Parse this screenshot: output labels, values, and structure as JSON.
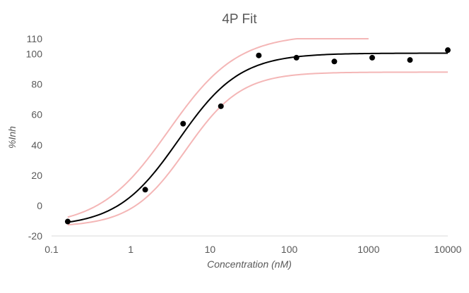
{
  "chart_data": {
    "type": "scatter",
    "title": "4P Fit",
    "xlabel": "Concentration (nM)",
    "ylabel": "%Inh",
    "x_scale": "log",
    "xlim": [
      0.1,
      10000
    ],
    "ylim": [
      -20,
      110
    ],
    "x_ticks": [
      0.1,
      1,
      10,
      100,
      1000,
      10000
    ],
    "x_tick_labels": [
      "0.1",
      "1",
      "10",
      "100",
      "1000",
      "10000"
    ],
    "y_ticks": [
      -20,
      0,
      20,
      40,
      60,
      80,
      100,
      110
    ],
    "y_tick_labels": [
      "-20",
      "0",
      "20",
      "40",
      "60",
      "80",
      "100",
      "110"
    ],
    "grid": false,
    "legend": "none",
    "series": [
      {
        "kind": "points",
        "color": "#000000",
        "x": [
          0.16,
          1.52,
          4.57,
          13.7,
          41.2,
          123,
          370,
          1111,
          3333,
          10000
        ],
        "y": [
          -10.5,
          10.5,
          54,
          65.5,
          99,
          97.5,
          95,
          97.5,
          96,
          102.5
        ]
      },
      {
        "kind": "fit",
        "color": "#000000",
        "model": "4PL",
        "bottom": -14,
        "top": 100.5,
        "ec50": 4.0,
        "hill": 1.12,
        "x_range": [
          0.16,
          10000
        ]
      },
      {
        "kind": "upper-bound",
        "color": "#f4b6b6",
        "model": "4PL",
        "bottom": -14,
        "top": 113,
        "ec50": 3.0,
        "hill": 1.0,
        "x_range": [
          0.16,
          1000
        ]
      },
      {
        "kind": "lower-bound",
        "color": "#f4b6b6",
        "model": "4PL",
        "bottom": -14,
        "top": 88,
        "ec50": 5.0,
        "hill": 1.25,
        "x_range": [
          0.16,
          10000
        ]
      }
    ]
  }
}
